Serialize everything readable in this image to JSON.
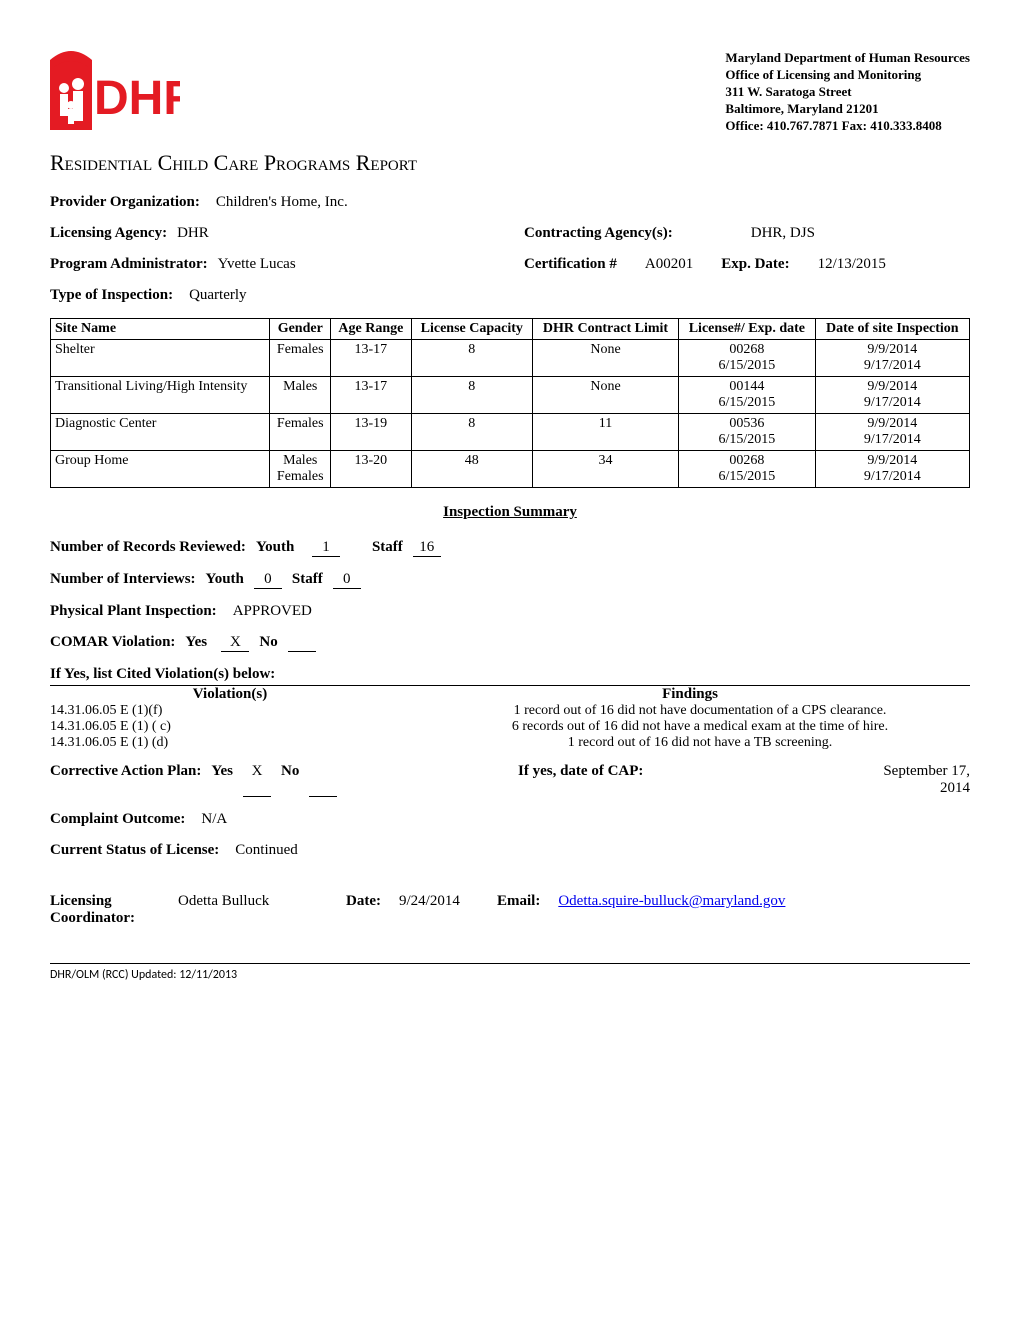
{
  "agency": {
    "line1": "Maryland Department of Human Resources",
    "line2": "Office of Licensing and Monitoring",
    "line3": "311 W. Saratoga Street",
    "line4": "Baltimore, Maryland 21201",
    "line5": "Office: 410.767.7871 Fax: 410.333.8408"
  },
  "logo": {
    "text": "DHR",
    "color": "#e41b23"
  },
  "title": "Residential Child Care Programs Report",
  "provider_label": "Provider Organization:",
  "provider": "Children's Home, Inc.",
  "licensing_agency_label": "Licensing Agency:",
  "licensing_agency": "DHR",
  "contracting_label": "Contracting Agency(s):",
  "contracting": "DHR, DJS",
  "admin_label": "Program Administrator:",
  "admin": "Yvette Lucas",
  "cert_label": "Certification #",
  "cert": "A00201",
  "expdate_label": "Exp. Date:",
  "expdate": "12/13/2015",
  "type_label": "Type of Inspection:",
  "type": "Quarterly",
  "table": {
    "headers": {
      "site": "Site Name",
      "gender": "Gender",
      "age": "Age Range",
      "capacity": "License Capacity",
      "contract": "DHR Contract Limit",
      "license": "License#/ Exp. date",
      "inspection": "Date of site Inspection"
    },
    "rows": [
      {
        "site": "Shelter",
        "gender": "Females",
        "age": "13-17",
        "capacity": "8",
        "contract": "None",
        "lic1": "00268",
        "lic2": "6/15/2015",
        "ins1": "9/9/2014",
        "ins2": "9/17/2014"
      },
      {
        "site": "Transitional Living/High Intensity",
        "gender": "Males",
        "age": "13-17",
        "capacity": "8",
        "contract": "None",
        "lic1": "00144",
        "lic2": "6/15/2015",
        "ins1": "9/9/2014",
        "ins2": "9/17/2014"
      },
      {
        "site": "Diagnostic Center",
        "gender": "Females",
        "age": "13-19",
        "capacity": "8",
        "contract": "11",
        "lic1": "00536",
        "lic2": "6/15/2015",
        "ins1": "9/9/2014",
        "ins2": "9/17/2014"
      },
      {
        "site": "Group Home",
        "gender": "Males Females",
        "age": "13-20",
        "capacity": "48",
        "contract": "34",
        "lic1": "00268",
        "lic2": "6/15/2015",
        "ins1": "9/9/2014",
        "ins2": "9/17/2014"
      }
    ]
  },
  "summary_title": "Inspection Summary",
  "records_label": "Number of Records Reviewed:",
  "youth_label": "Youth",
  "staff_label": "Staff",
  "records_youth": "1",
  "records_staff": "16",
  "interviews_label": "Number of Interviews:",
  "interviews_youth": "0",
  "interviews_staff": "0",
  "plant_label": "Physical Plant Inspection:",
  "plant": "APPROVED",
  "comar_label": "COMAR Violation:",
  "yes_label": "Yes",
  "no_label": "No",
  "comar_yes": "X",
  "comar_no": "",
  "violations_intro": "If Yes, list Cited Violation(s) below:",
  "violations_header": {
    "v": "Violation(s)",
    "f": "Findings"
  },
  "violations": [
    {
      "v": "14.31.06.05 E (1)(f)",
      "f": "1 record out of 16 did not have documentation of a CPS clearance."
    },
    {
      "v": "14.31.06.05 E (1) ( c)",
      "f": "6 records out of 16 did not have a medical exam at the time of hire."
    },
    {
      "v": "14.31.06.05 E (1) (d)",
      "f": "1 record out of 16 did not have a TB screening."
    }
  ],
  "cap_label": "Corrective Action Plan:",
  "cap_yes": "X",
  "cap_no": "",
  "cap_date_label": "If yes, date of CAP:",
  "cap_date": "September 17, 2014",
  "complaint_label": "Complaint Outcome:",
  "complaint": "N/A",
  "status_label": "Current Status of License:",
  "status": "Continued",
  "coord_label": "Licensing Coordinator:",
  "coord": "Odetta Bulluck",
  "date_label": "Date:",
  "date": "9/24/2014",
  "email_label": "Email:",
  "email": "Odetta.squire-bulluck@maryland.gov",
  "footer": "DHR/OLM (RCC) Updated: 12/11/2013"
}
